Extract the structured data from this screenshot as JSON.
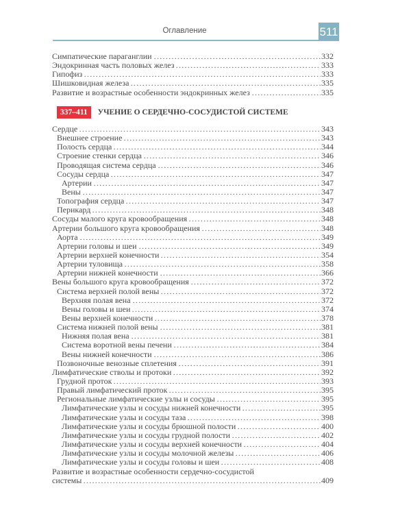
{
  "header": {
    "title": "Оглавление",
    "page_number": "511",
    "accent_color": "#86b3c2"
  },
  "top_entries": [
    {
      "label": "Симпатические параганглии",
      "page": "332",
      "level": 0
    },
    {
      "label": "Эндокринная часть половых желез",
      "page": "333",
      "level": 0
    },
    {
      "label": "Гипофиз",
      "page": "333",
      "level": 0
    },
    {
      "label": "Шишковидная железа",
      "page": "335",
      "level": 0
    },
    {
      "label": "Развитие и возрастные особенности эндокринных желез",
      "page": "335",
      "level": 0
    }
  ],
  "section": {
    "range": "337–411",
    "title": "УЧЕНИЕ О СЕРДЕЧНО-СОСУДИСТОЙ СИСТЕМЕ",
    "badge_color": "#e5343f"
  },
  "entries": [
    {
      "label": "Сердце",
      "page": "343",
      "level": 0
    },
    {
      "label": "Внешнее строение",
      "page": "343",
      "level": 1
    },
    {
      "label": "Полость сердца",
      "page": "344",
      "level": 1
    },
    {
      "label": "Строение стенки сердца",
      "page": "346",
      "level": 1
    },
    {
      "label": "Проводящая система сердца",
      "page": "346",
      "level": 1
    },
    {
      "label": "Сосуды сердца",
      "page": "347",
      "level": 1
    },
    {
      "label": "Артерии",
      "page": "347",
      "level": 2
    },
    {
      "label": "Вены",
      "page": "347",
      "level": 2
    },
    {
      "label": "Топография сердца",
      "page": "347",
      "level": 1
    },
    {
      "label": "Перикард",
      "page": "348",
      "level": 1
    },
    {
      "label": "Сосуды малого круга кровообращения",
      "page": "348",
      "level": 0
    },
    {
      "label": "Артерии большого круга кровообращения",
      "page": "348",
      "level": 0
    },
    {
      "label": "Аорта",
      "page": "349",
      "level": 1
    },
    {
      "label": "Артерии головы и шеи",
      "page": "349",
      "level": 1
    },
    {
      "label": "Артерии верхней конечности",
      "page": "354",
      "level": 1
    },
    {
      "label": "Артерии туловища",
      "page": "358",
      "level": 1
    },
    {
      "label": "Артерии нижней конечности",
      "page": "366",
      "level": 1
    },
    {
      "label": "Вены большого круга кровообращения",
      "page": "372",
      "level": 0
    },
    {
      "label": "Система верхней полой вены",
      "page": "372",
      "level": 1
    },
    {
      "label": "Верхняя полая вена",
      "page": "372",
      "level": 2
    },
    {
      "label": "Вены головы и шеи",
      "page": "374",
      "level": 2
    },
    {
      "label": "Вены верхней конечности",
      "page": "378",
      "level": 2
    },
    {
      "label": "Система нижней полой вены",
      "page": "381",
      "level": 1
    },
    {
      "label": "Нижняя полая вена",
      "page": "381",
      "level": 2
    },
    {
      "label": "Система воротной вены печени",
      "page": "384",
      "level": 2
    },
    {
      "label": "Вены нижней конечности",
      "page": "386",
      "level": 2
    },
    {
      "label": "Позвоночные венозные сплетения",
      "page": "391",
      "level": 1
    },
    {
      "label": "Лимфатические стволы и протоки",
      "page": "392",
      "level": 0
    },
    {
      "label": "Грудной проток",
      "page": "393",
      "level": 1
    },
    {
      "label": "Правый лимфатический проток",
      "page": "395",
      "level": 1
    },
    {
      "label": "Региональные лимфатические узлы и сосуды",
      "page": "395",
      "level": 1
    },
    {
      "label": "Лимфатические узлы и сосуды нижней конечности",
      "page": "395",
      "level": 2
    },
    {
      "label": "Лимфатические узлы и сосуды таза",
      "page": "398",
      "level": 2
    },
    {
      "label": "Лимфатические узлы и сосуды брюшной полости",
      "page": "400",
      "level": 2
    },
    {
      "label": "Лимфатические узлы и сосуды грудной полости",
      "page": "402",
      "level": 2
    },
    {
      "label": "Лимфатические узлы и сосуды верхней конечности",
      "page": "404",
      "level": 2
    },
    {
      "label": "Лимфатические узлы и сосуды молочной железы",
      "page": "406",
      "level": 2
    },
    {
      "label": "Лимфатические узлы и сосуды головы и шеи",
      "page": "408",
      "level": 2
    }
  ],
  "last_entry": {
    "line1": "Развитие и возрастные особенности сердечно-сосудистой",
    "line2": "системы",
    "page": "409"
  }
}
